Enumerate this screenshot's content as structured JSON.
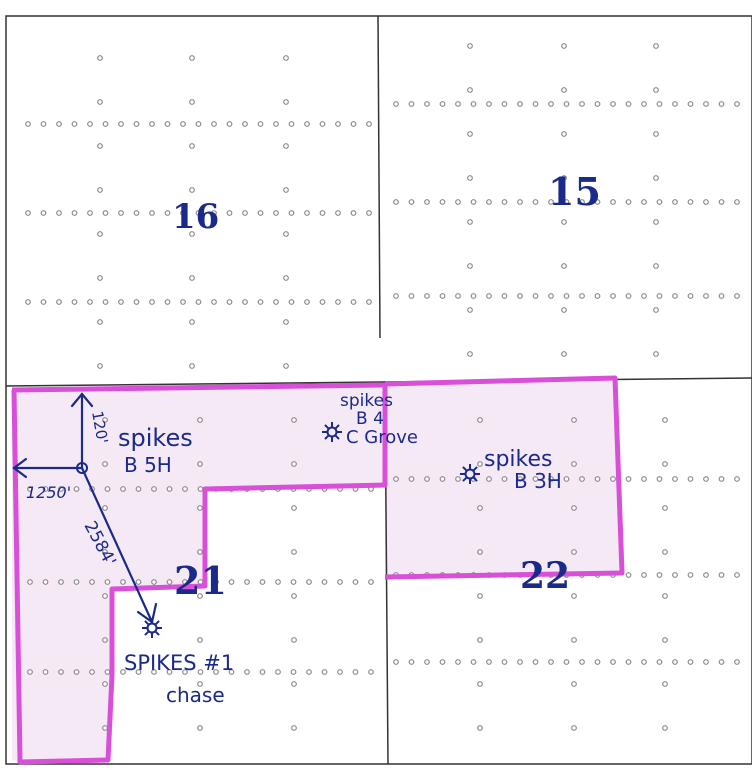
{
  "sections": [
    {
      "number": "16"
    },
    {
      "number": "15"
    },
    {
      "number": "21"
    },
    {
      "number": "22"
    }
  ],
  "wells": [
    {
      "name": "spikes_b5h",
      "lines": [
        "spikes",
        "B 5H"
      ]
    },
    {
      "name": "spikes_b4",
      "lines": [
        "spikes",
        "B 4",
        "C Grove"
      ]
    },
    {
      "name": "spikes_b3h",
      "lines": [
        "spikes",
        "B 3H"
      ]
    },
    {
      "name": "spikes_1",
      "lines": [
        "SPIKES #1",
        "chase"
      ]
    }
  ],
  "dimensions": {
    "north": "120'",
    "west": "1250'",
    "diagonal": "2584'"
  },
  "colors": {
    "ink": "#1a2a8a",
    "highlight": "#d84fd8",
    "highlight_fill": "#f6e9f6",
    "line": "#333333",
    "dot": "#8a8a8a"
  }
}
